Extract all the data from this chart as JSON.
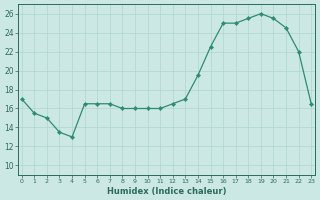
{
  "x": [
    0,
    1,
    2,
    3,
    4,
    5,
    6,
    7,
    8,
    9,
    10,
    11,
    12,
    13,
    14,
    15,
    16,
    17,
    18,
    19,
    20,
    21,
    22,
    23
  ],
  "y": [
    17,
    15.5,
    15,
    13.5,
    13,
    16.5,
    16.5,
    16.5,
    16,
    16,
    16,
    16,
    16.5,
    17,
    19.5,
    22.5,
    25,
    25,
    25.5,
    26,
    25.5,
    24.5,
    22,
    16.5
  ],
  "xlabel": "Humidex (Indice chaleur)",
  "ylim": [
    9,
    27
  ],
  "xlim": [
    -0.3,
    23.3
  ],
  "yticks": [
    10,
    12,
    14,
    16,
    18,
    20,
    22,
    24,
    26
  ],
  "xticks": [
    0,
    1,
    2,
    3,
    4,
    5,
    6,
    7,
    8,
    9,
    10,
    11,
    12,
    13,
    14,
    15,
    16,
    17,
    18,
    19,
    20,
    21,
    22,
    23
  ],
  "line_color": "#2e8b74",
  "marker_color": "#2e8b74",
  "bg_color": "#cce8e4",
  "grid_color": "#b0d4d0",
  "label_color": "#2e6b5a",
  "tick_color": "#2e6b5a",
  "spine_color": "#2e6b5a"
}
